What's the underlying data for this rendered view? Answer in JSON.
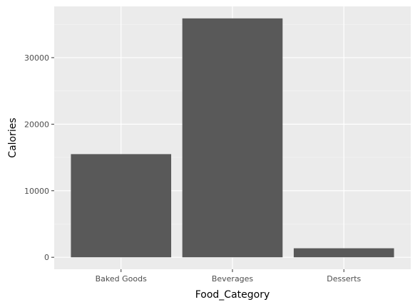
{
  "chart_data": {
    "type": "bar",
    "categories": [
      "Baked Goods",
      "Beverages",
      "Desserts"
    ],
    "values": [
      15500,
      35900,
      1350
    ],
    "xlabel": "Food_Category",
    "ylabel": "Calories",
    "ylim": [
      -1800,
      37700
    ],
    "y_ticks": [
      0,
      10000,
      20000,
      30000
    ],
    "y_tick_labels": [
      "0",
      "10000",
      "20000",
      "30000"
    ],
    "grid": true,
    "legend": "none",
    "colors": {
      "bar": "#595959",
      "panel": "#ebebeb",
      "grid_major": "#ffffff",
      "grid_minor": "#f5f5f5",
      "tick_mark": "#333333"
    }
  }
}
